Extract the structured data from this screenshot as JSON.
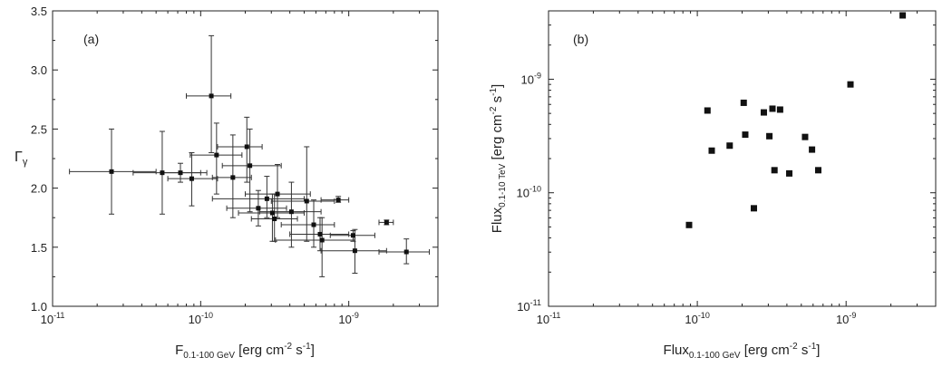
{
  "chart_data": [
    {
      "type": "scatter",
      "panel_label": "(a)",
      "xlabel": {
        "main": "F",
        "sub": "0.1-100 GeV",
        "units": " [erg cm",
        "sup1": "-2",
        "mid": " s",
        "sup2": "-1",
        "end": "]"
      },
      "ylabel": "Γγ",
      "ylabel_main": "Γ",
      "ylabel_sub": "γ",
      "xscale": "log",
      "xlim": [
        1e-11,
        4e-09
      ],
      "ylim": [
        1.0,
        3.5
      ],
      "xticks": [
        {
          "value": 1e-11,
          "base": "10",
          "exp": "-11"
        },
        {
          "value": 1e-10,
          "base": "10",
          "exp": "-10"
        },
        {
          "value": 1e-09,
          "base": "10",
          "exp": "-9"
        }
      ],
      "yticks": [
        "1.0",
        "1.5",
        "2.0",
        "2.5",
        "3.0",
        "3.5"
      ],
      "points": [
        {
          "x": 2.5e-11,
          "y": 2.14,
          "xlo": 1.3e-11,
          "xhi": 5e-11,
          "ylo": 1.78,
          "yhi": 2.5
        },
        {
          "x": 5.5e-11,
          "y": 2.13,
          "xlo": 3.5e-11,
          "xhi": 1.1e-10,
          "ylo": 1.78,
          "yhi": 2.48
        },
        {
          "x": 7.3e-11,
          "y": 2.13,
          "xlo": 5.5e-11,
          "xhi": 1e-10,
          "ylo": 2.05,
          "yhi": 2.21
        },
        {
          "x": 8.7e-11,
          "y": 2.08,
          "xlo": 6e-11,
          "xhi": 1.3e-10,
          "ylo": 1.85,
          "yhi": 2.3
        },
        {
          "x": 1.18e-10,
          "y": 2.78,
          "xlo": 8e-11,
          "xhi": 1.6e-10,
          "ylo": 2.3,
          "yhi": 3.29
        },
        {
          "x": 1.28e-10,
          "y": 2.28,
          "xlo": 8.5e-11,
          "xhi": 1.9e-10,
          "ylo": 1.95,
          "yhi": 2.55
        },
        {
          "x": 1.65e-10,
          "y": 2.09,
          "xlo": 1.2e-10,
          "xhi": 2.2e-10,
          "ylo": 1.75,
          "yhi": 2.45
        },
        {
          "x": 2.05e-10,
          "y": 2.35,
          "xlo": 1.3e-10,
          "xhi": 2.6e-10,
          "ylo": 2.05,
          "yhi": 2.6
        },
        {
          "x": 2.15e-10,
          "y": 2.19,
          "xlo": 1.4e-10,
          "xhi": 3.5e-10,
          "ylo": 1.8,
          "yhi": 2.5
        },
        {
          "x": 2.45e-10,
          "y": 1.83,
          "xlo": 1.5e-10,
          "xhi": 3.8e-10,
          "ylo": 1.68,
          "yhi": 1.98
        },
        {
          "x": 2.8e-10,
          "y": 1.91,
          "xlo": 1.2e-10,
          "xhi": 5e-10,
          "ylo": 1.75,
          "yhi": 2.1
        },
        {
          "x": 3.05e-10,
          "y": 1.79,
          "xlo": 1.8e-10,
          "xhi": 5e-10,
          "ylo": 1.55,
          "yhi": 1.95
        },
        {
          "x": 3.15e-10,
          "y": 1.74,
          "xlo": 2.2e-10,
          "xhi": 4.5e-10,
          "ylo": 1.55,
          "yhi": 1.95
        },
        {
          "x": 3.3e-10,
          "y": 1.95,
          "xlo": 2e-10,
          "xhi": 5.5e-10,
          "ylo": 1.75,
          "yhi": 2.2
        },
        {
          "x": 4.1e-10,
          "y": 1.8,
          "xlo": 2.5e-10,
          "xhi": 6.5e-10,
          "ylo": 1.5,
          "yhi": 2.05
        },
        {
          "x": 5.2e-10,
          "y": 1.89,
          "xlo": 3e-10,
          "xhi": 8e-10,
          "ylo": 1.55,
          "yhi": 2.35
        },
        {
          "x": 5.8e-10,
          "y": 1.69,
          "xlo": 3.5e-10,
          "xhi": 8e-10,
          "ylo": 1.5,
          "yhi": 1.9
        },
        {
          "x": 6.4e-10,
          "y": 1.61,
          "xlo": 4e-10,
          "xhi": 1e-09,
          "ylo": 1.47,
          "yhi": 1.75
        },
        {
          "x": 6.6e-10,
          "y": 1.56,
          "xlo": 3.2e-10,
          "xhi": 1.1e-09,
          "ylo": 1.25,
          "yhi": 1.75
        },
        {
          "x": 8.5e-10,
          "y": 1.9,
          "xlo": 6.5e-10,
          "xhi": 1e-09,
          "ylo": 1.88,
          "yhi": 1.93
        },
        {
          "x": 1.07e-09,
          "y": 1.6,
          "xlo": 7.5e-10,
          "xhi": 1.5e-09,
          "ylo": 1.55,
          "yhi": 1.64
        },
        {
          "x": 1.1e-09,
          "y": 1.47,
          "xlo": 6.5e-10,
          "xhi": 1.8e-09,
          "ylo": 1.28,
          "yhi": 1.65
        },
        {
          "x": 1.8e-09,
          "y": 1.71,
          "xlo": 1.6e-09,
          "xhi": 2e-09,
          "ylo": 1.69,
          "yhi": 1.73
        },
        {
          "x": 2.45e-09,
          "y": 1.46,
          "xlo": 1.6e-09,
          "xhi": 3.5e-09,
          "ylo": 1.36,
          "yhi": 1.57
        }
      ]
    },
    {
      "type": "scatter",
      "panel_label": "(b)",
      "xlabel": {
        "main": "Flux",
        "sub": "0.1-100 GeV",
        "units": " [erg cm",
        "sup1": "-2",
        "mid": " s",
        "sup2": "-1",
        "end": "]"
      },
      "ylabel": {
        "main": "Flux",
        "sub": "0.1-10 TeV",
        "units": " [erg cm",
        "sup1": "-2",
        "mid": " s",
        "sup2": "-1",
        "end": "]"
      },
      "xscale": "log",
      "yscale": "log",
      "xlim": [
        1e-11,
        4e-09
      ],
      "ylim": [
        1e-11,
        4e-09
      ],
      "xticks": [
        {
          "value": 1e-11,
          "base": "10",
          "exp": "-11"
        },
        {
          "value": 1e-10,
          "base": "10",
          "exp": "-10"
        },
        {
          "value": 1e-09,
          "base": "10",
          "exp": "-9"
        }
      ],
      "yticks": [
        {
          "value": 1e-11,
          "base": "10",
          "exp": "-11"
        },
        {
          "value": 1e-10,
          "base": "10",
          "exp": "-10"
        },
        {
          "value": 1e-09,
          "base": "10",
          "exp": "-9"
        }
      ],
      "points": [
        {
          "x": 8.8e-11,
          "y": 5.2e-11
        },
        {
          "x": 1.17e-10,
          "y": 5.3e-10
        },
        {
          "x": 1.25e-10,
          "y": 2.35e-10
        },
        {
          "x": 1.65e-10,
          "y": 2.6e-10
        },
        {
          "x": 2.05e-10,
          "y": 6.2e-10
        },
        {
          "x": 2.1e-10,
          "y": 3.25e-10
        },
        {
          "x": 2.4e-10,
          "y": 7.3e-11
        },
        {
          "x": 2.8e-10,
          "y": 5.1e-10
        },
        {
          "x": 3.05e-10,
          "y": 3.15e-10
        },
        {
          "x": 3.2e-10,
          "y": 5.5e-10
        },
        {
          "x": 3.3e-10,
          "y": 1.58e-10
        },
        {
          "x": 3.6e-10,
          "y": 5.4e-10
        },
        {
          "x": 4.15e-10,
          "y": 1.48e-10
        },
        {
          "x": 5.3e-10,
          "y": 3.1e-10
        },
        {
          "x": 5.9e-10,
          "y": 2.4e-10
        },
        {
          "x": 6.5e-10,
          "y": 1.58e-10
        },
        {
          "x": 1.07e-09,
          "y": 9e-10
        },
        {
          "x": 2.4e-09,
          "y": 3.65e-09
        }
      ]
    }
  ]
}
